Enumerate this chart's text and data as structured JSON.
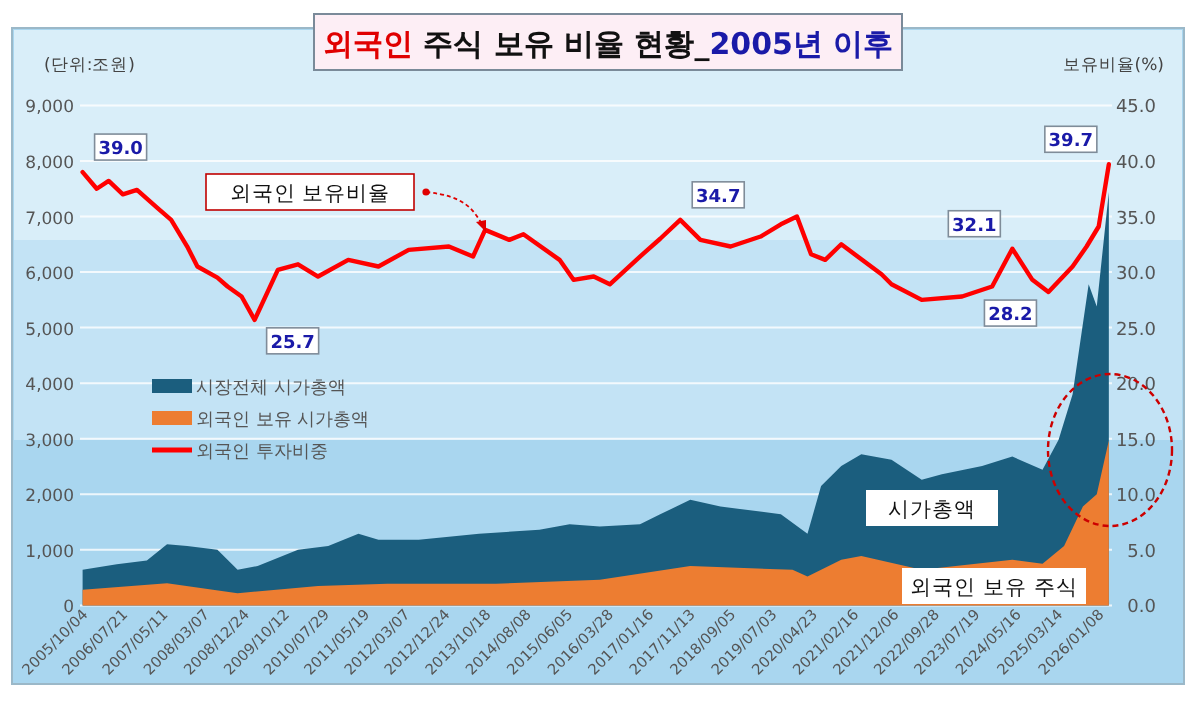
{
  "chart_data": {
    "type": "area",
    "title": "외국인 주식 보유 비율 현황_2005년 이후",
    "ylabel": "(단위:조원)",
    "y2label": "보유비율(%)",
    "annotations": [
      "외국인 보유비율",
      "시가총액",
      "외국인 보유 주식"
    ],
    "legend": "left",
    "grid": "y",
    "xlim": [
      "2005-09-15",
      "2026-04-15"
    ],
    "xticks": [
      {
        "value": "2005-10-04",
        "label": "2005/10/04"
      },
      {
        "value": "2006-07-21",
        "label": "2006/07/21"
      },
      {
        "value": "2007-05-11",
        "label": "2007/05/11"
      },
      {
        "value": "2008-03-07",
        "label": "2008/03/07"
      },
      {
        "value": "2008-12-24",
        "label": "2008/12/24"
      },
      {
        "value": "2009-10-12",
        "label": "2009/10/12"
      },
      {
        "value": "2010-07-29",
        "label": "2010/07/29"
      },
      {
        "value": "2011-05-19",
        "label": "2011/05/19"
      },
      {
        "value": "2012-03-07",
        "label": "2012/03/07"
      },
      {
        "value": "2012-12-24",
        "label": "2012/12/24"
      },
      {
        "value": "2013-10-18",
        "label": "2013/10/18"
      },
      {
        "value": "2014-08-08",
        "label": "2014/08/08"
      },
      {
        "value": "2015-06-05",
        "label": "2015/06/05"
      },
      {
        "value": "2016-03-28",
        "label": "2016/03/28"
      },
      {
        "value": "2017-01-16",
        "label": "2017/01/16"
      },
      {
        "value": "2017-11-13",
        "label": "2017/11/13"
      },
      {
        "value": "2018-09-05",
        "label": "2018/09/05"
      },
      {
        "value": "2019-07-03",
        "label": "2019/07/03"
      },
      {
        "value": "2020-04-23",
        "label": "2020/04/23"
      },
      {
        "value": "2021-02-16",
        "label": "2021/02/16"
      },
      {
        "value": "2021-12-06",
        "label": "2021/12/06"
      },
      {
        "value": "2022-09-28",
        "label": "2022/09/28"
      },
      {
        "value": "2023-07-19",
        "label": "2023/07/19"
      },
      {
        "value": "2024-05-16",
        "label": "2024/05/16"
      },
      {
        "value": "2025-03-14",
        "label": "2025/03/14"
      },
      {
        "value": "2026-01-08",
        "label": "2026/01/08"
      }
    ],
    "ylim": [
      0,
      9000
    ],
    "yticks": [
      {
        "value": 0,
        "label": "0"
      },
      {
        "value": 1000,
        "label": "1,000"
      },
      {
        "value": 2000,
        "label": "2,000"
      },
      {
        "value": 3000,
        "label": "3,000"
      },
      {
        "value": 4000,
        "label": "4,000"
      },
      {
        "value": 5000,
        "label": "5,000"
      },
      {
        "value": 6000,
        "label": "6,000"
      },
      {
        "value": 7000,
        "label": "7,000"
      },
      {
        "value": 8000,
        "label": "8,000"
      },
      {
        "value": 9000,
        "label": "9,000"
      }
    ],
    "y2lim": [
      0,
      45
    ],
    "y2ticks": [
      {
        "value": 0,
        "label": "0.0"
      },
      {
        "value": 5,
        "label": "5.0"
      },
      {
        "value": 10,
        "label": "10.0"
      },
      {
        "value": 15,
        "label": "15.0"
      },
      {
        "value": 20,
        "label": "20.0"
      },
      {
        "value": 25,
        "label": "25.0"
      },
      {
        "value": 30,
        "label": "30.0"
      },
      {
        "value": 35,
        "label": "35.0"
      },
      {
        "value": 40,
        "label": "40.0"
      },
      {
        "value": 45,
        "label": "45.0"
      }
    ],
    "series": [
      {
        "name": "시장전체 시가총액",
        "color": "#1b5e7e",
        "x": [
          "2005-10-04",
          "2006-06-10",
          "2007-01-15",
          "2007-06-11",
          "2007-11-05",
          "2008-06-12",
          "2008-11-06",
          "2009-04-01",
          "2010-01-20",
          "2010-08-28",
          "2011-04-05",
          "2011-08-29",
          "2012-06-17",
          "2013-08-31",
          "2014-11-13",
          "2015-06-21",
          "2016-01-27",
          "2016-11-15",
          "2017-04-11",
          "2017-11-16",
          "2018-06-24",
          "2019-09-07",
          "2020-03-19",
          "2020-06-26",
          "2020-11-20",
          "2021-04-15",
          "2021-11-21",
          "2022-06-29",
          "2022-11-23",
          "2023-09-12",
          "2024-04-19",
          "2024-11-25",
          "2025-03-22",
          "2025-07-02",
          "2025-10-27",
          "2025-12-25",
          "2026-03-23"
        ],
        "values": [
          640,
          740,
          810,
          1100,
          1070,
          1000,
          640,
          710,
          1000,
          1070,
          1290,
          1180,
          1180,
          1290,
          1360,
          1460,
          1420,
          1460,
          1640,
          1900,
          1780,
          1640,
          1290,
          2150,
          2510,
          2720,
          2620,
          2260,
          2360,
          2510,
          2680,
          2440,
          2980,
          3800,
          5780,
          5380,
          7440
        ]
      },
      {
        "name": "외국인 보유 시가총액",
        "color": "#ed7d31",
        "x": [
          "2005-10-04",
          "2007-06-11",
          "2008-11-06",
          "2010-06-15",
          "2011-11-01",
          "2014-01-01",
          "2016-01-27",
          "2017-11-16",
          "2019-12-01",
          "2020-03-19",
          "2020-11-20",
          "2021-04-15",
          "2022-06-29",
          "2024-04-19",
          "2024-11-25",
          "2025-05-01",
          "2025-09-15",
          "2025-12-25",
          "2026-03-23"
        ],
        "values": [
          280,
          400,
          220,
          350,
          390,
          390,
          460,
          710,
          640,
          520,
          820,
          890,
          640,
          820,
          750,
          1070,
          1780,
          2000,
          2970
        ]
      },
      {
        "name": "외국인 투자비중",
        "type": "line",
        "axis": "y2",
        "color": "#ff0000",
        "x": [
          "2005-10-04",
          "2006-01-15",
          "2006-04-12",
          "2006-07-24",
          "2006-11-04",
          "2007-03-30",
          "2007-07-11",
          "2007-11-05",
          "2008-01-18",
          "2008-06-12",
          "2008-08-25",
          "2008-12-05",
          "2009-03-10",
          "2009-08-26",
          "2010-01-20",
          "2010-06-15",
          "2011-01-21",
          "2011-08-29",
          "2012-04-05",
          "2013-01-23",
          "2013-07-18",
          "2013-10-14",
          "2014-04-08",
          "2014-07-20",
          "2015-04-09",
          "2015-07-20",
          "2015-12-14",
          "2016-04-09",
          "2016-11-15",
          "2017-04-11",
          "2017-09-04",
          "2018-01-29",
          "2018-09-06",
          "2019-04-13",
          "2019-09-07",
          "2020-01-02",
          "2020-04-14",
          "2020-07-26",
          "2020-11-20",
          "2021-09-09",
          "2021-11-21",
          "2022-06-29",
          "2023-04-19",
          "2023-11-24",
          "2024-04-19",
          "2024-09-12",
          "2025-01-07",
          "2025-07-02",
          "2025-10-12",
          "2026-01-08",
          "2026-03-23"
        ],
        "values": [
          39.0,
          37.5,
          38.2,
          37.0,
          37.4,
          35.8,
          34.7,
          32.3,
          30.5,
          29.5,
          28.7,
          27.8,
          25.7,
          30.2,
          30.7,
          29.6,
          31.1,
          30.5,
          32.0,
          32.3,
          31.4,
          33.8,
          32.9,
          33.4,
          31.1,
          29.3,
          29.6,
          28.9,
          31.4,
          33.0,
          34.7,
          32.9,
          32.3,
          33.2,
          34.3,
          35.0,
          31.6,
          31.1,
          32.5,
          29.8,
          28.9,
          27.5,
          27.8,
          28.7,
          32.1,
          29.3,
          28.2,
          30.5,
          32.3,
          34.1,
          39.7
        ],
        "value_labels": [
          "39.0",
          null,
          null,
          null,
          null,
          null,
          null,
          null,
          null,
          null,
          null,
          null,
          "25.7",
          null,
          null,
          null,
          null,
          null,
          null,
          null,
          null,
          null,
          null,
          null,
          null,
          null,
          null,
          null,
          null,
          null,
          "34.7",
          null,
          null,
          null,
          null,
          null,
          null,
          null,
          null,
          null,
          null,
          null,
          null,
          null,
          "32.1",
          null,
          "28.2",
          null,
          null,
          null,
          "39.7"
        ]
      }
    ]
  }
}
